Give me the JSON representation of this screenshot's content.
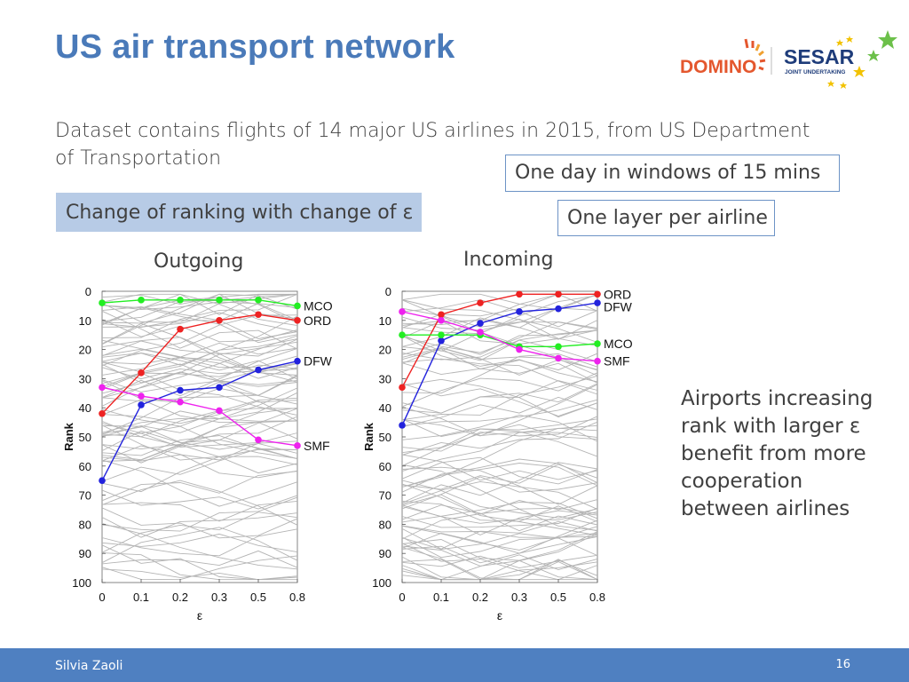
{
  "slide": {
    "title": "US air transport network",
    "intro": "Dataset contains flights of 14 major US airlines in 2015, from US Department of Transportation",
    "box_window": "One day in windows of 15 mins",
    "box_layer": "One layer per airline",
    "highlight": "Change of ranking with change of ε",
    "side_note": [
      "Airports increasing",
      "rank with larger ε",
      "benefit from more",
      "cooperation",
      "between airlines"
    ],
    "footer_author": "Silvia Zaoli",
    "page_number": "16",
    "logos": {
      "domino": "DOMINO",
      "sesar": "SESAR",
      "sesar_sub": "JOINT UNDERTAKING"
    },
    "colors": {
      "title": "#4a7ab9",
      "footer": "#4f80c1",
      "highlight": "#b7cbe6",
      "box_border": "#6d93c6"
    }
  },
  "chart_data": [
    {
      "type": "line",
      "title": "Outgoing",
      "xlabel": "ε",
      "ylabel": "Rank",
      "x": [
        "0",
        "0.1",
        "0.2",
        "0.3",
        "0.5",
        "0.8"
      ],
      "yticks": [
        "0",
        "10",
        "20",
        "30",
        "40",
        "50",
        "60",
        "70",
        "80",
        "90",
        "100"
      ],
      "ylim": [
        100,
        0
      ],
      "series": [
        {
          "name": "MCO",
          "color": "#22ee22",
          "values": [
            4,
            3,
            3,
            3,
            3,
            5
          ]
        },
        {
          "name": "ORD",
          "color": "#ee2222",
          "values": [
            42,
            28,
            13,
            10,
            8,
            10
          ]
        },
        {
          "name": "DFW",
          "color": "#2222dd",
          "values": [
            65,
            39,
            34,
            33,
            27,
            24
          ]
        },
        {
          "name": "SMF",
          "color": "#ee22ee",
          "values": [
            33,
            36,
            38,
            41,
            51,
            53
          ]
        }
      ]
    },
    {
      "type": "line",
      "title": "Incoming",
      "xlabel": "ε",
      "ylabel": "Rank",
      "x": [
        "0",
        "0.1",
        "0.2",
        "0.3",
        "0.5",
        "0.8"
      ],
      "yticks": [
        "0",
        "10",
        "20",
        "30",
        "40",
        "50",
        "60",
        "70",
        "80",
        "90",
        "100"
      ],
      "ylim": [
        100,
        0
      ],
      "series": [
        {
          "name": "ORD",
          "color": "#ee2222",
          "values": [
            33,
            8,
            4,
            1,
            1,
            1
          ]
        },
        {
          "name": "DFW",
          "color": "#2222dd",
          "values": [
            46,
            17,
            11,
            7,
            6,
            4
          ]
        },
        {
          "name": "MCO",
          "color": "#22ee22",
          "values": [
            15,
            15,
            15,
            19,
            19,
            18
          ]
        },
        {
          "name": "SMF",
          "color": "#ee22ee",
          "values": [
            7,
            10,
            14,
            20,
            23,
            24
          ]
        }
      ]
    }
  ]
}
